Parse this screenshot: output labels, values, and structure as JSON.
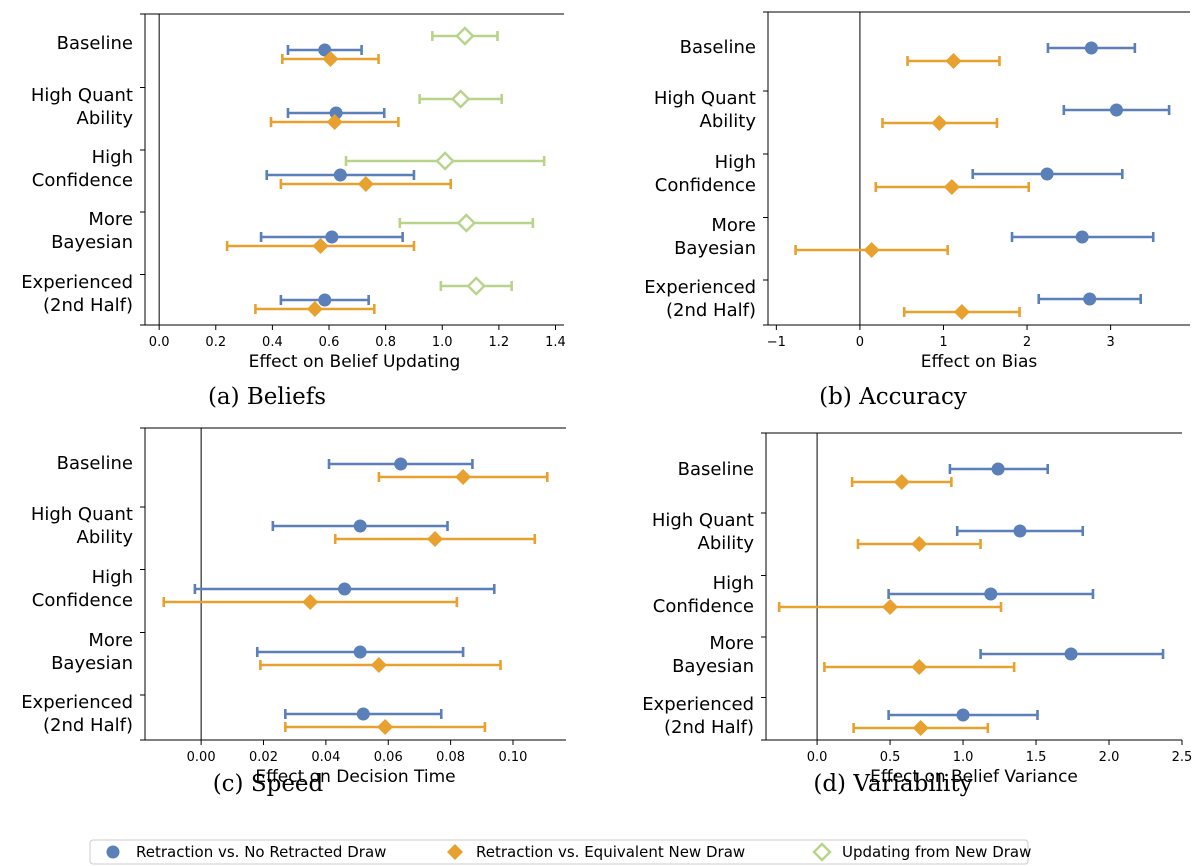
{
  "colors": {
    "retraction_no": "#5b7fb8",
    "retraction_equiv": "#e8a12e",
    "updating_new": "#b8d48a"
  },
  "legend": {
    "placement": "bottom-center",
    "items": [
      {
        "name": "Retraction vs. No Retracted Draw",
        "marker": "circle",
        "color": "#5b7fb8"
      },
      {
        "name": "Retraction vs. Equivalent New Draw",
        "marker": "diamond",
        "color": "#e8a12e"
      },
      {
        "name": "Updating from New Draw",
        "marker": "diamond-open",
        "color": "#b8d48a"
      }
    ]
  },
  "chart_data": [
    {
      "type": "scatter",
      "caption": "(a) Beliefs",
      "xlabel": "Effect on Belief Updating",
      "xlim": [
        -0.05,
        1.43
      ],
      "xticks": [
        "0.0",
        "0.2",
        "0.4",
        "0.6",
        "0.8",
        "1.0",
        "1.2",
        "1.4"
      ],
      "categories": [
        [
          "Baseline"
        ],
        [
          "High Quant",
          "Ability"
        ],
        [
          "High",
          "Confidence"
        ],
        [
          "More",
          "Bayesian"
        ],
        [
          "Experienced",
          "(2nd Half)"
        ]
      ],
      "series": [
        {
          "name": "Retraction vs. No Retracted Draw",
          "points": [
            {
              "est": 0.585,
              "lo": 0.455,
              "hi": 0.715
            },
            {
              "est": 0.625,
              "lo": 0.455,
              "hi": 0.795
            },
            {
              "est": 0.64,
              "lo": 0.38,
              "hi": 0.9
            },
            {
              "est": 0.61,
              "lo": 0.36,
              "hi": 0.86
            },
            {
              "est": 0.585,
              "lo": 0.43,
              "hi": 0.74
            }
          ]
        },
        {
          "name": "Retraction vs. Equivalent New Draw",
          "points": [
            {
              "est": 0.605,
              "lo": 0.435,
              "hi": 0.775
            },
            {
              "est": 0.62,
              "lo": 0.395,
              "hi": 0.845
            },
            {
              "est": 0.73,
              "lo": 0.43,
              "hi": 1.03
            },
            {
              "est": 0.57,
              "lo": 0.24,
              "hi": 0.9
            },
            {
              "est": 0.55,
              "lo": 0.34,
              "hi": 0.76
            }
          ]
        },
        {
          "name": "Updating from New Draw",
          "points": [
            {
              "est": 1.08,
              "lo": 0.965,
              "hi": 1.195
            },
            {
              "est": 1.065,
              "lo": 0.92,
              "hi": 1.21
            },
            {
              "est": 1.01,
              "lo": 0.66,
              "hi": 1.36
            },
            {
              "est": 1.085,
              "lo": 0.85,
              "hi": 1.32
            },
            {
              "est": 1.12,
              "lo": 0.995,
              "hi": 1.245
            }
          ]
        }
      ]
    },
    {
      "type": "scatter",
      "caption": "(b) Accuracy",
      "xlabel": "Effect on Bias",
      "xlim": [
        -1.1,
        3.95
      ],
      "xticks": [
        "−1",
        "0",
        "1",
        "2",
        "3"
      ],
      "categories": [
        [
          "Baseline"
        ],
        [
          "High Quant",
          "Ability"
        ],
        [
          "High",
          "Confidence"
        ],
        [
          "More",
          "Bayesian"
        ],
        [
          "Experienced",
          "(2nd Half)"
        ]
      ],
      "series": [
        {
          "name": "Retraction vs. No Retracted Draw",
          "points": [
            {
              "est": 2.77,
              "lo": 2.25,
              "hi": 3.29
            },
            {
              "est": 3.07,
              "lo": 2.44,
              "hi": 3.7
            },
            {
              "est": 2.24,
              "lo": 1.35,
              "hi": 3.14
            },
            {
              "est": 2.66,
              "lo": 1.82,
              "hi": 3.51
            },
            {
              "est": 2.75,
              "lo": 2.14,
              "hi": 3.36
            }
          ]
        },
        {
          "name": "Retraction vs. Equivalent New Draw",
          "points": [
            {
              "est": 1.12,
              "lo": 0.57,
              "hi": 1.67
            },
            {
              "est": 0.95,
              "lo": 0.27,
              "hi": 1.64
            },
            {
              "est": 1.1,
              "lo": 0.19,
              "hi": 2.02
            },
            {
              "est": 0.14,
              "lo": -0.77,
              "hi": 1.05
            },
            {
              "est": 1.22,
              "lo": 0.53,
              "hi": 1.91
            }
          ]
        }
      ]
    },
    {
      "type": "scatter",
      "caption": "(c) Speed",
      "xlabel": "Effect on Decision Time",
      "xlim": [
        -0.018,
        0.117
      ],
      "xticks": [
        "0.00",
        "0.02",
        "0.04",
        "0.06",
        "0.08",
        "0.10"
      ],
      "categories": [
        [
          "Baseline"
        ],
        [
          "High Quant",
          "Ability"
        ],
        [
          "High",
          "Confidence"
        ],
        [
          "More",
          "Bayesian"
        ],
        [
          "Experienced",
          "(2nd Half)"
        ]
      ],
      "series": [
        {
          "name": "Retraction vs. No Retracted Draw",
          "points": [
            {
              "est": 0.064,
              "lo": 0.041,
              "hi": 0.087
            },
            {
              "est": 0.051,
              "lo": 0.023,
              "hi": 0.079
            },
            {
              "est": 0.046,
              "lo": -0.002,
              "hi": 0.094
            },
            {
              "est": 0.051,
              "lo": 0.018,
              "hi": 0.084
            },
            {
              "est": 0.052,
              "lo": 0.027,
              "hi": 0.077
            }
          ]
        },
        {
          "name": "Retraction vs. Equivalent New Draw",
          "points": [
            {
              "est": 0.084,
              "lo": 0.057,
              "hi": 0.111
            },
            {
              "est": 0.075,
              "lo": 0.043,
              "hi": 0.107
            },
            {
              "est": 0.035,
              "lo": -0.012,
              "hi": 0.082
            },
            {
              "est": 0.057,
              "lo": 0.019,
              "hi": 0.096
            },
            {
              "est": 0.059,
              "lo": 0.027,
              "hi": 0.091
            }
          ]
        }
      ]
    },
    {
      "type": "scatter",
      "caption": "(d) Variability",
      "xlabel": "Effect on Belief Variance",
      "xlim": [
        -0.35,
        2.5
      ],
      "xticks": [
        "0.0",
        "0.5",
        "1.0",
        "1.5",
        "2.0",
        "2.5"
      ],
      "categories": [
        [
          "Baseline"
        ],
        [
          "High Quant",
          "Ability"
        ],
        [
          "High",
          "Confidence"
        ],
        [
          "More",
          "Bayesian"
        ],
        [
          "Experienced",
          "(2nd Half)"
        ]
      ],
      "series": [
        {
          "name": "Retraction vs. No Retracted Draw",
          "points": [
            {
              "est": 1.24,
              "lo": 0.91,
              "hi": 1.58
            },
            {
              "est": 1.39,
              "lo": 0.96,
              "hi": 1.82
            },
            {
              "est": 1.19,
              "lo": 0.49,
              "hi": 1.89
            },
            {
              "est": 1.74,
              "lo": 1.12,
              "hi": 2.37
            },
            {
              "est": 1.0,
              "lo": 0.49,
              "hi": 1.51
            }
          ]
        },
        {
          "name": "Retraction vs. Equivalent New Draw",
          "points": [
            {
              "est": 0.58,
              "lo": 0.24,
              "hi": 0.92
            },
            {
              "est": 0.7,
              "lo": 0.28,
              "hi": 1.12
            },
            {
              "est": 0.5,
              "lo": -0.26,
              "hi": 1.26
            },
            {
              "est": 0.7,
              "lo": 0.05,
              "hi": 1.35
            },
            {
              "est": 0.71,
              "lo": 0.25,
              "hi": 1.17
            }
          ]
        }
      ]
    }
  ]
}
